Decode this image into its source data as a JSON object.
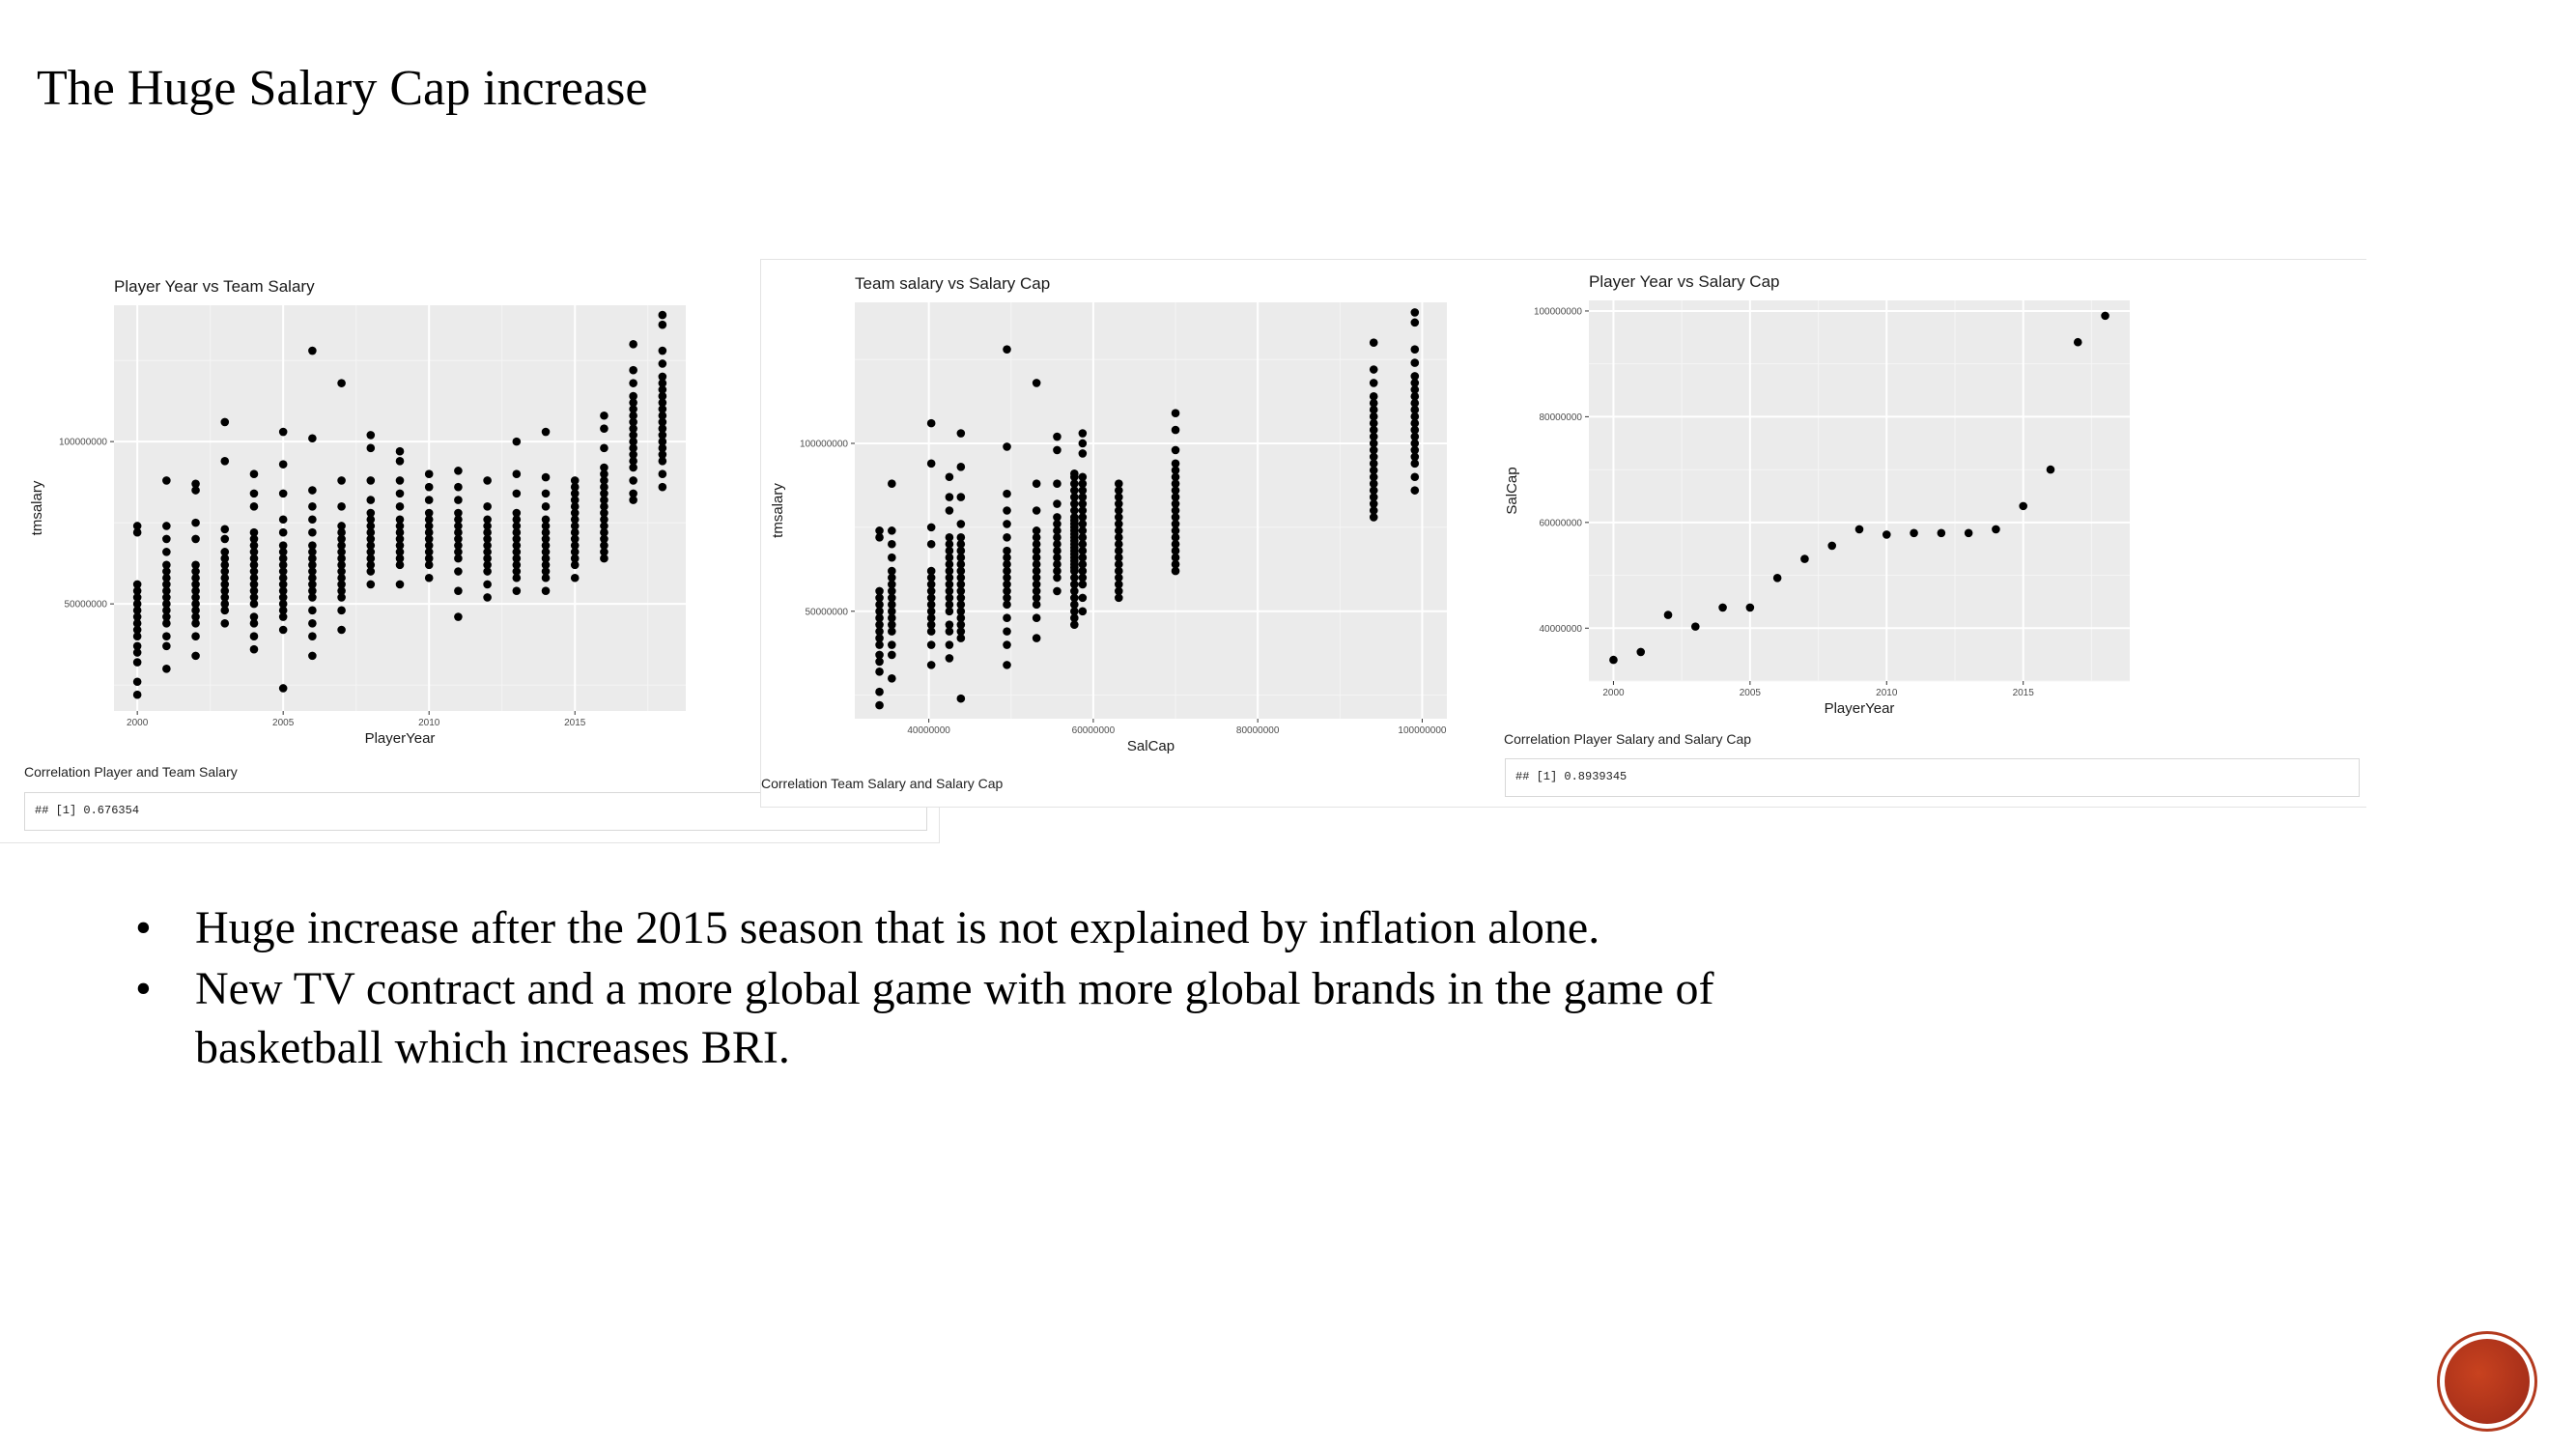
{
  "slide": {
    "title": "The Huge Salary Cap increase",
    "bullets": [
      "Huge increase after the 2015 season that is not explained by inflation alone.",
      "New TV contract and a more global game with more global brands in the game of basketball which increases BRI."
    ],
    "bullet_symbol": "•",
    "logo_color": "#b33a1e",
    "icon": "circle-logo-icon"
  },
  "correlations": [
    {
      "label": "Correlation Player and Team Salary",
      "value": "## [1] 0.676354"
    },
    {
      "label": "Correlation Team Salary and Salary Cap",
      "value": ""
    },
    {
      "label": "Correlation Player Salary and Salary Cap",
      "value": "## [1] 0.8939345"
    }
  ],
  "chart_data": [
    {
      "type": "scatter",
      "title": "Player Year vs Team Salary",
      "xlabel": "PlayerYear",
      "ylabel": "tmsalary",
      "xlim": [
        1999.2,
        2018.8
      ],
      "ylim": [
        17000000,
        142000000
      ],
      "xticks": [
        2000,
        2005,
        2010,
        2015
      ],
      "xtick_labels": [
        "2000",
        "2005",
        "2010",
        "2015"
      ],
      "yticks": [
        50000000,
        100000000
      ],
      "ytick_labels": [
        "50000000",
        "100000000"
      ],
      "grid": true,
      "point_color": "#000000",
      "groups": [
        {
          "x": 2000,
          "values": [
            22000000,
            26000000,
            32000000,
            35000000,
            37000000,
            40000000,
            42000000,
            44000000,
            46000000,
            48000000,
            50000000,
            52000000,
            54000000,
            56000000,
            72000000,
            74000000
          ]
        },
        {
          "x": 2001,
          "values": [
            30000000,
            37000000,
            40000000,
            44000000,
            46000000,
            48000000,
            50000000,
            52000000,
            54000000,
            56000000,
            58000000,
            60000000,
            62000000,
            66000000,
            70000000,
            74000000,
            88000000
          ]
        },
        {
          "x": 2002,
          "values": [
            34000000,
            40000000,
            44000000,
            46000000,
            48000000,
            50000000,
            52000000,
            54000000,
            56000000,
            58000000,
            60000000,
            62000000,
            70000000,
            75000000,
            85000000,
            87000000
          ]
        },
        {
          "x": 2003,
          "values": [
            44000000,
            48000000,
            50000000,
            52000000,
            54000000,
            56000000,
            58000000,
            60000000,
            62000000,
            64000000,
            66000000,
            70000000,
            73000000,
            94000000,
            106000000
          ]
        },
        {
          "x": 2004,
          "values": [
            36000000,
            40000000,
            44000000,
            46000000,
            50000000,
            52000000,
            54000000,
            56000000,
            58000000,
            60000000,
            62000000,
            64000000,
            66000000,
            68000000,
            70000000,
            72000000,
            80000000,
            84000000,
            90000000
          ]
        },
        {
          "x": 2005,
          "values": [
            24000000,
            42000000,
            46000000,
            48000000,
            50000000,
            52000000,
            54000000,
            56000000,
            58000000,
            60000000,
            62000000,
            64000000,
            66000000,
            68000000,
            72000000,
            76000000,
            84000000,
            93000000,
            103000000
          ]
        },
        {
          "x": 2006,
          "values": [
            34000000,
            40000000,
            44000000,
            48000000,
            52000000,
            54000000,
            56000000,
            58000000,
            60000000,
            62000000,
            64000000,
            66000000,
            68000000,
            72000000,
            76000000,
            80000000,
            85000000,
            101000000,
            128000000
          ]
        },
        {
          "x": 2007,
          "values": [
            42000000,
            48000000,
            52000000,
            54000000,
            56000000,
            58000000,
            60000000,
            62000000,
            64000000,
            66000000,
            68000000,
            70000000,
            72000000,
            74000000,
            80000000,
            88000000,
            118000000
          ]
        },
        {
          "x": 2008,
          "values": [
            56000000,
            60000000,
            62000000,
            64000000,
            66000000,
            68000000,
            70000000,
            72000000,
            74000000,
            76000000,
            78000000,
            82000000,
            88000000,
            98000000,
            102000000
          ]
        },
        {
          "x": 2009,
          "values": [
            56000000,
            62000000,
            64000000,
            66000000,
            68000000,
            70000000,
            72000000,
            74000000,
            76000000,
            80000000,
            84000000,
            88000000,
            94000000,
            97000000
          ]
        },
        {
          "x": 2010,
          "values": [
            58000000,
            62000000,
            64000000,
            66000000,
            68000000,
            70000000,
            72000000,
            74000000,
            76000000,
            78000000,
            82000000,
            86000000,
            90000000
          ]
        },
        {
          "x": 2011,
          "values": [
            46000000,
            54000000,
            60000000,
            64000000,
            66000000,
            68000000,
            70000000,
            72000000,
            74000000,
            76000000,
            78000000,
            82000000,
            86000000,
            91000000
          ]
        },
        {
          "x": 2012,
          "values": [
            52000000,
            56000000,
            60000000,
            62000000,
            64000000,
            66000000,
            68000000,
            70000000,
            72000000,
            74000000,
            76000000,
            80000000,
            88000000
          ]
        },
        {
          "x": 2013,
          "values": [
            54000000,
            58000000,
            60000000,
            62000000,
            64000000,
            66000000,
            68000000,
            70000000,
            72000000,
            74000000,
            76000000,
            78000000,
            84000000,
            90000000,
            100000000
          ]
        },
        {
          "x": 2014,
          "values": [
            54000000,
            58000000,
            60000000,
            62000000,
            64000000,
            66000000,
            68000000,
            70000000,
            72000000,
            74000000,
            76000000,
            80000000,
            84000000,
            89000000,
            103000000
          ]
        },
        {
          "x": 2015,
          "values": [
            58000000,
            62000000,
            64000000,
            66000000,
            68000000,
            70000000,
            72000000,
            74000000,
            76000000,
            78000000,
            80000000,
            82000000,
            84000000,
            86000000,
            88000000
          ]
        },
        {
          "x": 2016,
          "values": [
            64000000,
            66000000,
            68000000,
            70000000,
            72000000,
            74000000,
            76000000,
            78000000,
            80000000,
            82000000,
            84000000,
            86000000,
            88000000,
            90000000,
            92000000,
            98000000,
            104000000,
            108000000
          ]
        },
        {
          "x": 2017,
          "values": [
            82000000,
            84000000,
            88000000,
            92000000,
            94000000,
            96000000,
            98000000,
            100000000,
            102000000,
            104000000,
            106000000,
            108000000,
            110000000,
            112000000,
            114000000,
            118000000,
            122000000,
            130000000
          ]
        },
        {
          "x": 2018,
          "values": [
            86000000,
            90000000,
            94000000,
            96000000,
            98000000,
            100000000,
            102000000,
            104000000,
            106000000,
            108000000,
            110000000,
            112000000,
            114000000,
            116000000,
            118000000,
            120000000,
            124000000,
            128000000,
            136000000,
            139000000
          ]
        }
      ]
    },
    {
      "type": "scatter",
      "title": "Team salary vs Salary Cap",
      "xlabel": "SalCap",
      "ylabel": "tmsalary",
      "xlim": [
        31000000,
        103000000
      ],
      "ylim": [
        18000000,
        142000000
      ],
      "xticks": [
        40000000,
        60000000,
        80000000,
        100000000
      ],
      "xtick_labels": [
        "40000000",
        "60000000",
        "80000000",
        "100000000"
      ],
      "yticks": [
        50000000,
        100000000
      ],
      "ytick_labels": [
        "50000000",
        "100000000"
      ],
      "grid": true,
      "point_color": "#000000",
      "groups": [
        {
          "x": 34000000,
          "values": [
            22000000,
            26000000,
            32000000,
            35000000,
            37000000,
            40000000,
            42000000,
            44000000,
            46000000,
            48000000,
            50000000,
            52000000,
            54000000,
            56000000,
            72000000,
            74000000
          ]
        },
        {
          "x": 35500000,
          "values": [
            30000000,
            37000000,
            40000000,
            44000000,
            46000000,
            48000000,
            50000000,
            52000000,
            54000000,
            56000000,
            58000000,
            60000000,
            62000000,
            66000000,
            70000000,
            74000000,
            88000000
          ]
        },
        {
          "x": 40300000,
          "values": [
            34000000,
            40000000,
            44000000,
            46000000,
            48000000,
            50000000,
            52000000,
            54000000,
            56000000,
            58000000,
            60000000,
            62000000,
            70000000,
            75000000,
            94000000,
            106000000
          ]
        },
        {
          "x": 42500000,
          "values": [
            36000000,
            40000000,
            44000000,
            46000000,
            50000000,
            52000000,
            54000000,
            56000000,
            58000000,
            60000000,
            62000000,
            64000000,
            66000000,
            68000000,
            70000000,
            72000000,
            80000000,
            84000000,
            90000000
          ]
        },
        {
          "x": 43900000,
          "values": [
            24000000,
            42000000,
            44000000,
            46000000,
            48000000,
            50000000,
            52000000,
            54000000,
            56000000,
            58000000,
            60000000,
            62000000,
            64000000,
            66000000,
            68000000,
            70000000,
            72000000,
            76000000,
            84000000,
            93000000,
            103000000
          ]
        },
        {
          "x": 49500000,
          "values": [
            34000000,
            40000000,
            44000000,
            48000000,
            52000000,
            54000000,
            56000000,
            58000000,
            60000000,
            62000000,
            64000000,
            66000000,
            68000000,
            72000000,
            76000000,
            80000000,
            85000000,
            99000000,
            128000000
          ]
        },
        {
          "x": 53100000,
          "values": [
            42000000,
            48000000,
            52000000,
            54000000,
            56000000,
            58000000,
            60000000,
            62000000,
            64000000,
            66000000,
            68000000,
            70000000,
            72000000,
            74000000,
            80000000,
            88000000,
            118000000
          ]
        },
        {
          "x": 55600000,
          "values": [
            56000000,
            60000000,
            62000000,
            64000000,
            66000000,
            68000000,
            70000000,
            72000000,
            74000000,
            76000000,
            78000000,
            82000000,
            88000000,
            98000000,
            102000000
          ]
        },
        {
          "x": 57700000,
          "values": [
            46000000,
            48000000,
            50000000,
            52000000,
            54000000,
            56000000,
            58000000,
            60000000,
            62000000,
            63000000,
            64000000,
            65000000,
            66000000,
            67000000,
            68000000,
            69000000,
            70000000,
            71000000,
            72000000,
            73000000,
            74000000,
            75000000,
            76000000,
            77000000,
            78000000,
            80000000,
            82000000,
            84000000,
            86000000,
            88000000,
            90000000,
            91000000
          ]
        },
        {
          "x": 58700000,
          "values": [
            50000000,
            54000000,
            58000000,
            60000000,
            62000000,
            64000000,
            66000000,
            68000000,
            70000000,
            72000000,
            74000000,
            76000000,
            78000000,
            80000000,
            82000000,
            84000000,
            86000000,
            88000000,
            90000000,
            97000000,
            100000000,
            103000000
          ]
        },
        {
          "x": 63100000,
          "values": [
            54000000,
            56000000,
            58000000,
            60000000,
            62000000,
            64000000,
            66000000,
            68000000,
            70000000,
            72000000,
            74000000,
            76000000,
            78000000,
            80000000,
            82000000,
            84000000,
            86000000,
            88000000
          ]
        },
        {
          "x": 70000000,
          "values": [
            62000000,
            64000000,
            66000000,
            68000000,
            70000000,
            72000000,
            74000000,
            76000000,
            78000000,
            80000000,
            82000000,
            84000000,
            86000000,
            88000000,
            90000000,
            92000000,
            94000000,
            98000000,
            104000000,
            109000000
          ]
        },
        {
          "x": 94100000,
          "values": [
            78000000,
            80000000,
            82000000,
            84000000,
            86000000,
            88000000,
            90000000,
            92000000,
            94000000,
            96000000,
            98000000,
            100000000,
            102000000,
            104000000,
            106000000,
            108000000,
            110000000,
            112000000,
            114000000,
            118000000,
            122000000,
            130000000
          ]
        },
        {
          "x": 99100000,
          "values": [
            86000000,
            90000000,
            94000000,
            96000000,
            98000000,
            100000000,
            102000000,
            104000000,
            106000000,
            108000000,
            110000000,
            112000000,
            114000000,
            116000000,
            118000000,
            120000000,
            124000000,
            128000000,
            136000000,
            139000000
          ]
        }
      ]
    },
    {
      "type": "scatter",
      "title": "Player Year vs Salary Cap",
      "xlabel": "PlayerYear",
      "ylabel": "SalCap",
      "xlim": [
        1999.1,
        2018.9
      ],
      "ylim": [
        30000000,
        102000000
      ],
      "xticks": [
        2000,
        2005,
        2010,
        2015
      ],
      "xtick_labels": [
        "2000",
        "2005",
        "2010",
        "2015"
      ],
      "yticks": [
        40000000,
        60000000,
        80000000,
        100000000
      ],
      "ytick_labels": [
        "40000000",
        "60000000",
        "80000000",
        "100000000"
      ],
      "grid": true,
      "point_color": "#000000",
      "points": [
        {
          "x": 2000,
          "y": 34000000
        },
        {
          "x": 2001,
          "y": 35500000
        },
        {
          "x": 2002,
          "y": 42500000
        },
        {
          "x": 2003,
          "y": 40300000
        },
        {
          "x": 2004,
          "y": 43900000
        },
        {
          "x": 2005,
          "y": 43900000
        },
        {
          "x": 2006,
          "y": 49500000
        },
        {
          "x": 2007,
          "y": 53100000
        },
        {
          "x": 2008,
          "y": 55600000
        },
        {
          "x": 2009,
          "y": 58700000
        },
        {
          "x": 2010,
          "y": 57700000
        },
        {
          "x": 2011,
          "y": 58000000
        },
        {
          "x": 2012,
          "y": 58000000
        },
        {
          "x": 2013,
          "y": 58000000
        },
        {
          "x": 2014,
          "y": 58700000
        },
        {
          "x": 2015,
          "y": 63100000
        },
        {
          "x": 2016,
          "y": 70000000
        },
        {
          "x": 2017,
          "y": 94100000
        },
        {
          "x": 2018,
          "y": 99100000
        }
      ]
    }
  ]
}
